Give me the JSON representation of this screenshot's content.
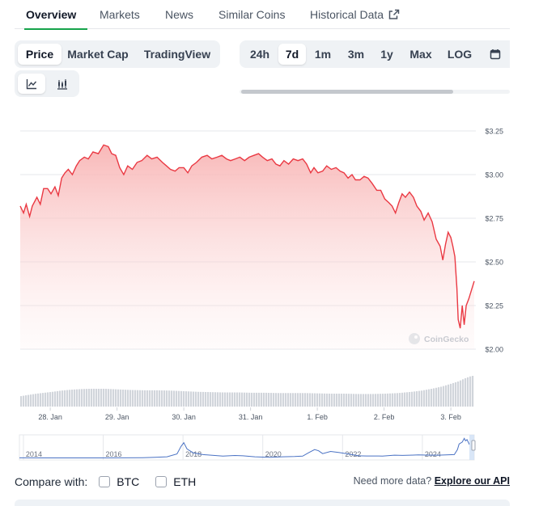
{
  "tabs": [
    {
      "label": "Overview",
      "active": true
    },
    {
      "label": "Markets"
    },
    {
      "label": "News"
    },
    {
      "label": "Similar Coins"
    },
    {
      "label": "Historical Data",
      "icon": "external-link-icon"
    }
  ],
  "metric_toggle": [
    {
      "label": "Price",
      "active": true
    },
    {
      "label": "Market Cap"
    },
    {
      "label": "TradingView"
    }
  ],
  "range_toggle": [
    {
      "label": "24h"
    },
    {
      "label": "7d",
      "active": true
    },
    {
      "label": "1m"
    },
    {
      "label": "3m"
    },
    {
      "label": "1y"
    },
    {
      "label": "Max"
    },
    {
      "label": "LOG"
    }
  ],
  "range_icon": "calendar-icon",
  "chart_type_toggle": [
    {
      "icon": "line-chart-icon",
      "active": true
    },
    {
      "icon": "candlestick-chart-icon"
    }
  ],
  "watermark": "CoinGecko",
  "compare": {
    "label": "Compare with:",
    "options": [
      "BTC",
      "ETH"
    ]
  },
  "more_data": {
    "text": "Need more data?",
    "link": "Explore our API"
  },
  "colors": {
    "line": "#ea3943",
    "fill_top": "#f8b4b4",
    "accent": "#16a34a",
    "navigator_line": "#4a72c4"
  },
  "chart_data": {
    "type": "area",
    "ylim": [
      2.0,
      3.25
    ],
    "yticks": [
      "$3.25",
      "$3.00",
      "$2.75",
      "$2.50",
      "$2.25",
      "$2.00"
    ],
    "yticks_values": [
      3.25,
      3.0,
      2.75,
      2.5,
      2.25,
      2.0
    ],
    "xticks": [
      "28. Jan",
      "29. Jan",
      "30. Jan",
      "31. Jan",
      "1. Feb",
      "2. Feb",
      "3. Feb"
    ],
    "xticks_days": [
      0,
      1,
      2,
      3,
      4,
      5,
      6
    ],
    "x_start_day": -0.45,
    "x_end_day": 6.35,
    "price": [
      [
        -0.45,
        2.82
      ],
      [
        -0.4,
        2.78
      ],
      [
        -0.36,
        2.83
      ],
      [
        -0.31,
        2.76
      ],
      [
        -0.27,
        2.82
      ],
      [
        -0.2,
        2.87
      ],
      [
        -0.15,
        2.83
      ],
      [
        -0.1,
        2.92
      ],
      [
        -0.04,
        2.92
      ],
      [
        0.01,
        2.89
      ],
      [
        0.07,
        2.93
      ],
      [
        0.12,
        2.88
      ],
      [
        0.17,
        2.98
      ],
      [
        0.22,
        3.01
      ],
      [
        0.27,
        3.03
      ],
      [
        0.33,
        3.0
      ],
      [
        0.39,
        3.05
      ],
      [
        0.44,
        3.08
      ],
      [
        0.51,
        3.1
      ],
      [
        0.57,
        3.09
      ],
      [
        0.64,
        3.13
      ],
      [
        0.72,
        3.12
      ],
      [
        0.8,
        3.17
      ],
      [
        0.87,
        3.16
      ],
      [
        0.92,
        3.12
      ],
      [
        0.98,
        3.11
      ],
      [
        1.04,
        3.04
      ],
      [
        1.1,
        3.0
      ],
      [
        1.16,
        3.05
      ],
      [
        1.23,
        3.03
      ],
      [
        1.3,
        3.07
      ],
      [
        1.37,
        3.08
      ],
      [
        1.45,
        3.11
      ],
      [
        1.52,
        3.09
      ],
      [
        1.6,
        3.1
      ],
      [
        1.68,
        3.07
      ],
      [
        1.74,
        3.05
      ],
      [
        1.8,
        3.03
      ],
      [
        1.87,
        3.02
      ],
      [
        1.93,
        3.04
      ],
      [
        2.0,
        3.04
      ],
      [
        2.06,
        3.01
      ],
      [
        2.12,
        3.05
      ],
      [
        2.19,
        3.07
      ],
      [
        2.27,
        3.1
      ],
      [
        2.35,
        3.11
      ],
      [
        2.42,
        3.09
      ],
      [
        2.5,
        3.1
      ],
      [
        2.57,
        3.11
      ],
      [
        2.64,
        3.09
      ],
      [
        2.7,
        3.08
      ],
      [
        2.77,
        3.09
      ],
      [
        2.84,
        3.1
      ],
      [
        2.91,
        3.08
      ],
      [
        2.98,
        3.1
      ],
      [
        3.05,
        3.11
      ],
      [
        3.12,
        3.12
      ],
      [
        3.18,
        3.1
      ],
      [
        3.25,
        3.08
      ],
      [
        3.32,
        3.09
      ],
      [
        3.38,
        3.06
      ],
      [
        3.44,
        3.05
      ],
      [
        3.5,
        3.08
      ],
      [
        3.57,
        3.06
      ],
      [
        3.64,
        3.09
      ],
      [
        3.71,
        3.08
      ],
      [
        3.78,
        3.09
      ],
      [
        3.84,
        3.06
      ],
      [
        3.9,
        3.01
      ],
      [
        3.95,
        3.04
      ],
      [
        4.01,
        3.01
      ],
      [
        4.08,
        3.02
      ],
      [
        4.14,
        3.05
      ],
      [
        4.21,
        3.03
      ],
      [
        4.28,
        3.04
      ],
      [
        4.34,
        3.02
      ],
      [
        4.4,
        3.01
      ],
      [
        4.46,
        2.98
      ],
      [
        4.52,
        3.0
      ],
      [
        4.57,
        2.97
      ],
      [
        4.64,
        2.97
      ],
      [
        4.7,
        2.99
      ],
      [
        4.76,
        2.98
      ],
      [
        4.82,
        2.95
      ],
      [
        4.89,
        2.91
      ],
      [
        4.95,
        2.91
      ],
      [
        5.01,
        2.86
      ],
      [
        5.07,
        2.84
      ],
      [
        5.12,
        2.82
      ],
      [
        5.17,
        2.78
      ],
      [
        5.22,
        2.84
      ],
      [
        5.27,
        2.89
      ],
      [
        5.32,
        2.87
      ],
      [
        5.38,
        2.9
      ],
      [
        5.44,
        2.87
      ],
      [
        5.49,
        2.82
      ],
      [
        5.55,
        2.79
      ],
      [
        5.6,
        2.74
      ],
      [
        5.66,
        2.78
      ],
      [
        5.72,
        2.73
      ],
      [
        5.78,
        2.63
      ],
      [
        5.84,
        2.59
      ],
      [
        5.88,
        2.51
      ],
      [
        5.92,
        2.6
      ],
      [
        5.96,
        2.67
      ],
      [
        6.0,
        2.64
      ],
      [
        6.03,
        2.59
      ],
      [
        6.06,
        2.53
      ],
      [
        6.09,
        2.35
      ],
      [
        6.11,
        2.17
      ],
      [
        6.14,
        2.12
      ],
      [
        6.17,
        2.25
      ],
      [
        6.2,
        2.14
      ],
      [
        6.23,
        2.25
      ],
      [
        6.27,
        2.29
      ],
      [
        6.31,
        2.34
      ],
      [
        6.35,
        2.39
      ]
    ],
    "volume": [
      [
        -0.45,
        0.34
      ],
      [
        -0.34,
        0.38
      ],
      [
        -0.22,
        0.42
      ],
      [
        -0.1,
        0.45
      ],
      [
        0.02,
        0.48
      ],
      [
        0.15,
        0.52
      ],
      [
        0.3,
        0.55
      ],
      [
        0.45,
        0.57
      ],
      [
        0.6,
        0.58
      ],
      [
        0.8,
        0.58
      ],
      [
        1.0,
        0.56
      ],
      [
        1.2,
        0.54
      ],
      [
        1.4,
        0.53
      ],
      [
        1.6,
        0.53
      ],
      [
        1.8,
        0.52
      ],
      [
        2.0,
        0.5
      ],
      [
        2.2,
        0.48
      ],
      [
        2.4,
        0.47
      ],
      [
        2.6,
        0.46
      ],
      [
        2.8,
        0.46
      ],
      [
        3.0,
        0.45
      ],
      [
        3.2,
        0.45
      ],
      [
        3.4,
        0.44
      ],
      [
        3.6,
        0.44
      ],
      [
        3.8,
        0.44
      ],
      [
        4.0,
        0.43
      ],
      [
        4.2,
        0.42
      ],
      [
        4.4,
        0.42
      ],
      [
        4.6,
        0.41
      ],
      [
        4.8,
        0.41
      ],
      [
        5.0,
        0.42
      ],
      [
        5.2,
        0.44
      ],
      [
        5.4,
        0.48
      ],
      [
        5.55,
        0.52
      ],
      [
        5.7,
        0.58
      ],
      [
        5.85,
        0.65
      ],
      [
        6.0,
        0.75
      ],
      [
        6.1,
        0.82
      ],
      [
        6.2,
        0.92
      ],
      [
        6.3,
        1.0
      ],
      [
        6.35,
        1.0
      ]
    ],
    "navigator": {
      "xticks": [
        "2014",
        "2016",
        "2018",
        "2020",
        "2022",
        "2024"
      ],
      "xticks_years": [
        2014,
        2016,
        2018,
        2020,
        2022,
        2024
      ],
      "x_start_year": 2013.9,
      "x_end_year": 2025.3,
      "ylim": [
        0,
        3.5
      ],
      "price": [
        [
          2013.9,
          0.08
        ],
        [
          2014.5,
          0.07
        ],
        [
          2015.0,
          0.06
        ],
        [
          2015.5,
          0.06
        ],
        [
          2016.0,
          0.07
        ],
        [
          2016.5,
          0.08
        ],
        [
          2017.0,
          0.1
        ],
        [
          2017.3,
          0.15
        ],
        [
          2017.6,
          0.25
        ],
        [
          2017.85,
          0.7
        ],
        [
          2017.95,
          1.9
        ],
        [
          2018.02,
          2.5
        ],
        [
          2018.1,
          1.5
        ],
        [
          2018.25,
          0.9
        ],
        [
          2018.5,
          0.6
        ],
        [
          2018.8,
          0.45
        ],
        [
          2019.0,
          0.35
        ],
        [
          2019.3,
          0.45
        ],
        [
          2019.5,
          0.4
        ],
        [
          2019.8,
          0.25
        ],
        [
          2020.0,
          0.2
        ],
        [
          2020.2,
          0.17
        ],
        [
          2020.5,
          0.25
        ],
        [
          2020.8,
          0.28
        ],
        [
          2021.0,
          0.35
        ],
        [
          2021.15,
          0.9
        ],
        [
          2021.3,
          1.4
        ],
        [
          2021.4,
          1.2
        ],
        [
          2021.5,
          0.75
        ],
        [
          2021.7,
          1.1
        ],
        [
          2021.9,
          0.95
        ],
        [
          2022.1,
          0.75
        ],
        [
          2022.4,
          0.4
        ],
        [
          2022.6,
          0.37
        ],
        [
          2022.9,
          0.38
        ],
        [
          2023.0,
          0.35
        ],
        [
          2023.3,
          0.5
        ],
        [
          2023.5,
          0.47
        ],
        [
          2023.7,
          0.5
        ],
        [
          2023.9,
          0.55
        ],
        [
          2024.1,
          0.52
        ],
        [
          2024.4,
          0.5
        ],
        [
          2024.6,
          0.55
        ],
        [
          2024.8,
          0.6
        ],
        [
          2024.88,
          1.4
        ],
        [
          2024.92,
          2.3
        ],
        [
          2025.0,
          2.6
        ],
        [
          2025.05,
          3.2
        ],
        [
          2025.08,
          2.8
        ],
        [
          2025.12,
          3.0
        ],
        [
          2025.18,
          2.2
        ]
      ]
    }
  }
}
